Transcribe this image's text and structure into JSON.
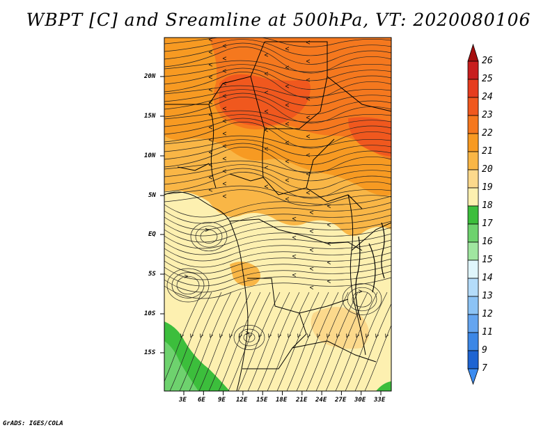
{
  "title": "WBPT [C] and Sreamline at 500hPa, VT: 2020080106",
  "credit": "GrADS: IGES/COLA",
  "map": {
    "variable": "WBPT",
    "units": "C",
    "level": "500hPa",
    "valid_time": "2020080106",
    "lat_labels": [
      "20N",
      "15N",
      "10N",
      "5N",
      "EQ",
      "5S",
      "10S",
      "15S"
    ],
    "lon_labels": [
      "3E",
      "6E",
      "9E",
      "12E",
      "15E",
      "18E",
      "21E",
      "24E",
      "27E",
      "30E",
      "33E"
    ]
  },
  "colorbar": {
    "labels": [
      "26",
      "25",
      "24",
      "23",
      "22",
      "21",
      "20",
      "19",
      "18",
      "17",
      "16",
      "15",
      "14",
      "13",
      "12",
      "11",
      "9",
      "7"
    ],
    "colors": [
      "#a50f0f",
      "#c81e1e",
      "#e63c1e",
      "#f0581e",
      "#f5781e",
      "#f79a22",
      "#f9b646",
      "#fcd98c",
      "#fdf0b0",
      "#3cbe3c",
      "#6ed26e",
      "#a0e6a0",
      "#e0f6fc",
      "#b4dcfa",
      "#8cc3f5",
      "#64a5f0",
      "#3c87e6",
      "#1e64d2",
      "#3c8cf0"
    ]
  },
  "colors": {
    "cool": "#fdf0b0",
    "mid": "#f9b646",
    "warm": "#f5781e",
    "hot": "#f0581e",
    "green": "#3cbe3c",
    "lightgreen": "#6ed26e"
  }
}
